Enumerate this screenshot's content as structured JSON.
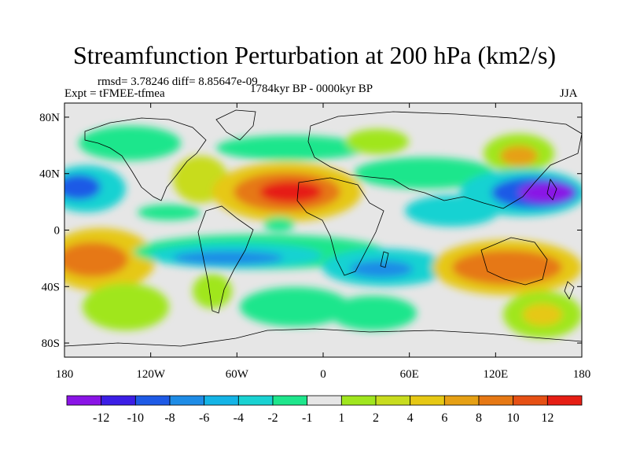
{
  "title": "Streamfunction Perturbation at 200 hPa (km2/s)",
  "stats_text": "rmsd= 3.78246 diff= 8.85647e-09",
  "expt_text": "Expt = tFMEE-tfmea",
  "period_text": "1784kyr BP - 0000kyr BP",
  "season": "JJA",
  "map": {
    "lon_range": [
      -180,
      180
    ],
    "lat_range": [
      -90,
      90
    ],
    "lon_ticks": [
      {
        "value": -180,
        "label": "180"
      },
      {
        "value": -120,
        "label": "120W"
      },
      {
        "value": -60,
        "label": "60W"
      },
      {
        "value": 0,
        "label": "0"
      },
      {
        "value": 60,
        "label": "60E"
      },
      {
        "value": 120,
        "label": "120E"
      },
      {
        "value": 180,
        "label": "180"
      }
    ],
    "lat_ticks": [
      {
        "value": 80,
        "label": "80N"
      },
      {
        "value": 40,
        "label": "40N"
      },
      {
        "value": 0,
        "label": "0"
      },
      {
        "value": -40,
        "label": "40S"
      },
      {
        "value": -80,
        "label": "80S"
      }
    ]
  },
  "colorbar": {
    "colors": [
      "#8a14e6",
      "#3c1ee6",
      "#1e5ae6",
      "#1e8ce6",
      "#14b4e6",
      "#19d2d2",
      "#1ee68c",
      "#e6e6e6",
      "#a0e61e",
      "#c8dc1e",
      "#e6c814",
      "#e6a014",
      "#e67814",
      "#e65014",
      "#e61e14"
    ],
    "labels": [
      "-12",
      "-10",
      "-8",
      "-6",
      "-4",
      "-2",
      "-1",
      "1",
      "2",
      "4",
      "6",
      "8",
      "10",
      "12"
    ]
  }
}
